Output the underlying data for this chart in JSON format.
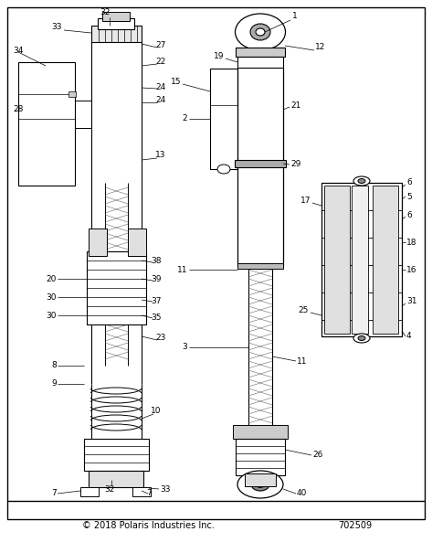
{
  "copyright": "© 2018 Polaris Industries Inc.",
  "part_number": "702509",
  "bg": "#ffffff",
  "lc": "#000000",
  "fig_width": 4.73,
  "fig_height": 6.05,
  "dpi": 100
}
